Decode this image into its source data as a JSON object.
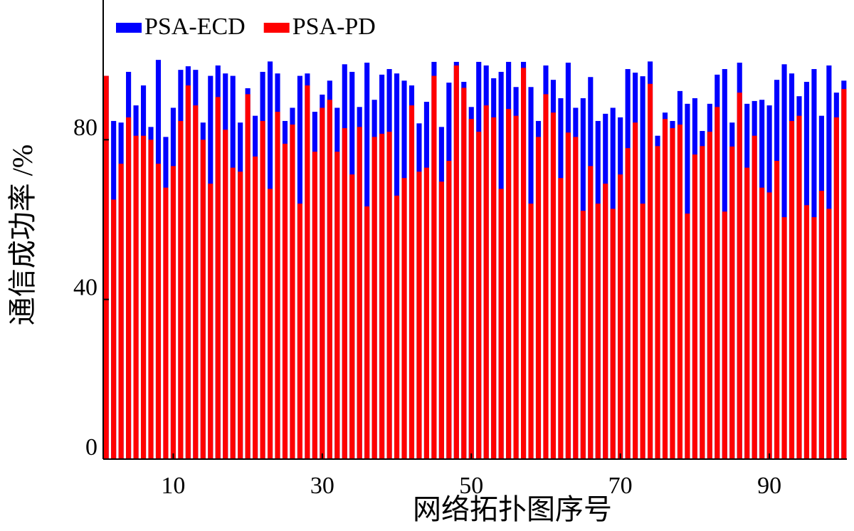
{
  "chart_data": {
    "type": "bar",
    "overlay": true,
    "xlabel": "网络拓扑图序号",
    "ylabel": "通信成功率 /%",
    "x": [
      1,
      2,
      3,
      4,
      5,
      6,
      7,
      8,
      9,
      10,
      11,
      12,
      13,
      14,
      15,
      16,
      17,
      18,
      19,
      20,
      21,
      22,
      23,
      24,
      25,
      26,
      27,
      28,
      29,
      30,
      31,
      32,
      33,
      34,
      35,
      36,
      37,
      38,
      39,
      40,
      41,
      42,
      43,
      44,
      45,
      46,
      47,
      48,
      49,
      50,
      51,
      52,
      53,
      54,
      55,
      56,
      57,
      58,
      59,
      60,
      61,
      62,
      63,
      64,
      65,
      66,
      67,
      68,
      69,
      70,
      71,
      72,
      73,
      74,
      75,
      76,
      77,
      78,
      79,
      80,
      81,
      82,
      83,
      84,
      85,
      86,
      87,
      88,
      89,
      90,
      91,
      92,
      93,
      94,
      95,
      96,
      97,
      98,
      99,
      100
    ],
    "series": [
      {
        "name": "PSA-ECD",
        "color": "#0000ff",
        "values": [
          96,
          84.7,
          84.3,
          97,
          88.6,
          93.6,
          83.2,
          100,
          80.7,
          88,
          97.5,
          98.4,
          97.5,
          84.3,
          96,
          98.6,
          96.6,
          96,
          84.3,
          92.9,
          86,
          97,
          99.6,
          96.6,
          84.7,
          88,
          96,
          96.6,
          87,
          91.3,
          94.8,
          88,
          98.9,
          97,
          88.2,
          99.3,
          90,
          96.3,
          97.7,
          96.6,
          94.8,
          93.6,
          84.1,
          89.5,
          99.5,
          83.2,
          94.3,
          99.5,
          94.5,
          88.2,
          99.5,
          98.6,
          95.4,
          97,
          99.5,
          93.2,
          99.5,
          93.2,
          84.7,
          98.6,
          95,
          90.4,
          99.3,
          88,
          90.4,
          95.7,
          84.7,
          86.5,
          88,
          85.6,
          97.7,
          96.8,
          95.9,
          99.6,
          81,
          86.8,
          84.7,
          92.2,
          89,
          90.4,
          82.2,
          89,
          96.3,
          97.7,
          84.3,
          99.3,
          89,
          89.7,
          90,
          88.6,
          95,
          98.9,
          96.6,
          90.9,
          94.5,
          97.7,
          86,
          98.6,
          91.8,
          94.8
        ]
      },
      {
        "name": "PSA-PD",
        "color": "#ff0000",
        "values": [
          96,
          65,
          74,
          85.6,
          81,
          81,
          80,
          74,
          68,
          73.4,
          84.7,
          93.6,
          88.6,
          80,
          69,
          90.7,
          82.5,
          73,
          72,
          91.4,
          75.8,
          84.7,
          67.7,
          87,
          79,
          83.8,
          64,
          93.6,
          77,
          88,
          90,
          77,
          82.9,
          71.3,
          83.2,
          63.3,
          80.7,
          81.5,
          82,
          66,
          70.4,
          88.6,
          72,
          73,
          96,
          69.5,
          74.7,
          98.6,
          93,
          85.2,
          82,
          88.6,
          85.6,
          67.7,
          87.7,
          86,
          98,
          64,
          80.7,
          91.4,
          86.8,
          70.4,
          81.8,
          80.7,
          62.2,
          73.4,
          64,
          69,
          62.7,
          71.3,
          77.9,
          84.3,
          64,
          94,
          78.4,
          85.2,
          82.9,
          83.8,
          61.5,
          76.3,
          78.4,
          82,
          88.2,
          62,
          78.3,
          91.8,
          73,
          81,
          68,
          66.8,
          74.7,
          60.6,
          84.7,
          86,
          63.6,
          60.6,
          67.2,
          62.7,
          85.6,
          92.7
        ]
      }
    ],
    "xlim": [
      0.6,
      100.4
    ],
    "xticks": [
      10,
      30,
      50,
      70,
      90
    ],
    "ylim": [
      0,
      115
    ],
    "yticks": [
      0,
      40,
      80
    ],
    "legend": "upper left",
    "grid": false
  }
}
